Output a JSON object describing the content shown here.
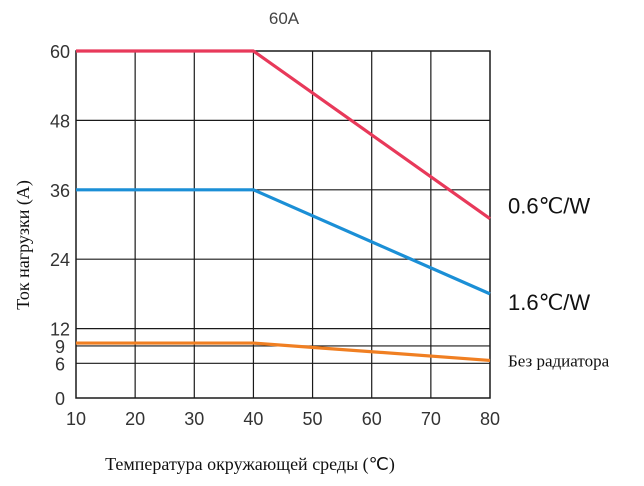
{
  "chart_data": {
    "type": "line",
    "title": "60A",
    "xlabel": "Температура окружающей среды (℃)",
    "ylabel": "Ток нагрузки (A)",
    "xlim": [
      10,
      80
    ],
    "ylim": [
      0,
      60
    ],
    "x_ticks": [
      10,
      20,
      30,
      40,
      50,
      60,
      70,
      80
    ],
    "y_ticks": [
      0,
      6,
      9,
      12,
      24,
      36,
      48,
      60
    ],
    "grid": true,
    "series": [
      {
        "name": "0.6℃/W",
        "color": "#e8395a",
        "x": [
          10,
          40,
          80
        ],
        "y": [
          60,
          60,
          31
        ]
      },
      {
        "name": "1.6℃/W",
        "color": "#1b8fd6",
        "x": [
          10,
          40,
          80
        ],
        "y": [
          36,
          36,
          18
        ]
      },
      {
        "name": "Без радиатора",
        "color": "#f07f22",
        "x": [
          10,
          40,
          80
        ],
        "y": [
          9.5,
          9.5,
          6.5
        ]
      }
    ]
  }
}
